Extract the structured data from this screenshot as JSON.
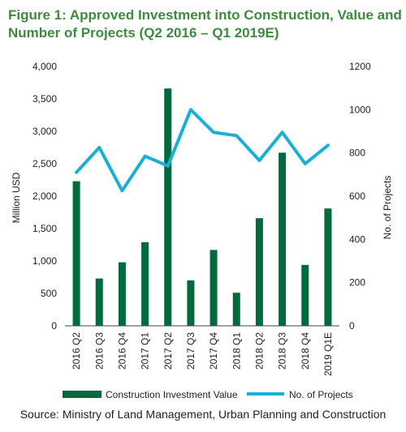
{
  "figure": {
    "title": "Figure 1: Approved Investment into Construction, Value and Number of Projects (Q2 2016 – Q1 2019E)",
    "source": "Source: Ministry of Land Management, Urban Planning and Construction"
  },
  "chart_data": {
    "type": "bar",
    "title": "Figure 1: Approved Investment into Construction, Value and Number of Projects (Q2 2016 – Q1 2019E)",
    "categories": [
      "2016 Q2",
      "2016 Q3",
      "2016 Q4",
      "2017 Q1",
      "2017 Q2",
      "2017 Q3",
      "2017 Q4",
      "2018 Q1",
      "2018 Q2",
      "2018 Q3",
      "2018 Q4",
      "2019 Q1E"
    ],
    "ylabel": "Million USD",
    "y2label": "No. of Projects",
    "ylim": [
      0,
      4000
    ],
    "y2lim": [
      0,
      1200
    ],
    "yticks": [
      "0",
      "500",
      "1,000",
      "1,500",
      "2,000",
      "2,500",
      "3,000",
      "3,500",
      "4,000"
    ],
    "y2ticks": [
      "0",
      "200",
      "400",
      "600",
      "800",
      "1000",
      "1200"
    ],
    "grid": false,
    "legend_position": "bottom",
    "series": [
      {
        "name": "Construction Investment Value",
        "type": "bar",
        "axis": "left",
        "color": "#006b3c",
        "values": [
          2230,
          730,
          980,
          1290,
          3660,
          700,
          1170,
          510,
          1660,
          2670,
          940,
          1810
        ]
      },
      {
        "name": "No. of Projects",
        "type": "line",
        "axis": "right",
        "color": "#1ab0d6",
        "values": [
          710,
          825,
          625,
          785,
          740,
          1000,
          895,
          880,
          765,
          895,
          750,
          835
        ]
      }
    ]
  }
}
